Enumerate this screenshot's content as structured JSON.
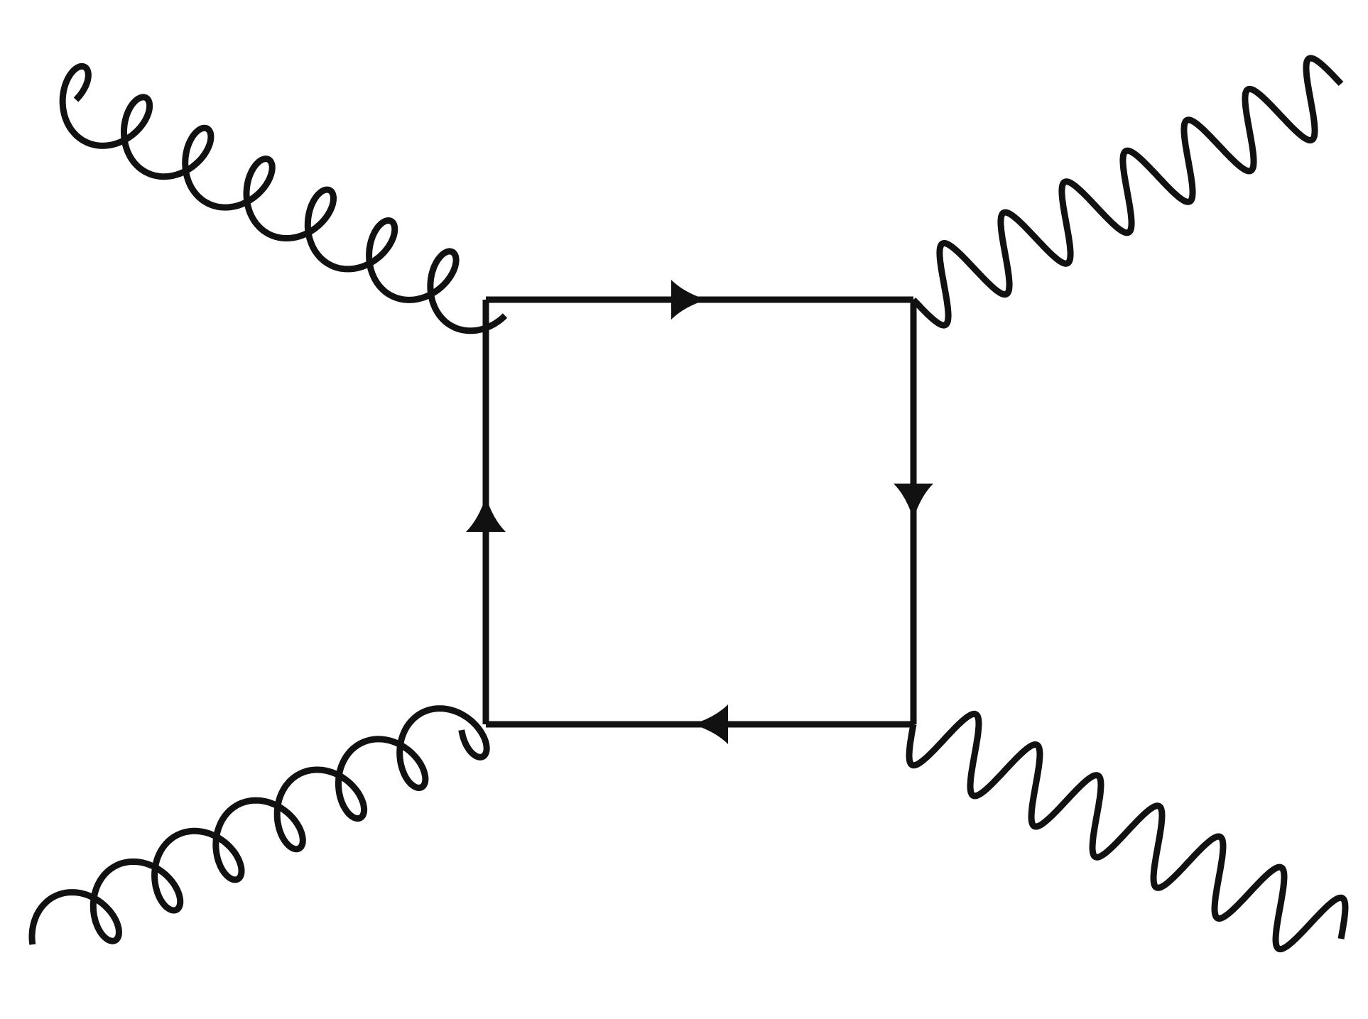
{
  "diagram": {
    "type": "feynman-box",
    "colors": {
      "line": "#111111",
      "background": "#ffffff"
    },
    "vertices": [
      {
        "id": "top-left"
      },
      {
        "id": "top-right"
      },
      {
        "id": "bottom-right"
      },
      {
        "id": "bottom-left"
      }
    ],
    "internal_lines": [
      {
        "kind": "fermion",
        "from": "top-left",
        "to": "top-right",
        "arrow": "right"
      },
      {
        "kind": "fermion",
        "from": "top-right",
        "to": "bottom-right",
        "arrow": "down"
      },
      {
        "kind": "fermion",
        "from": "bottom-right",
        "to": "bottom-left",
        "arrow": "left"
      },
      {
        "kind": "fermion",
        "from": "bottom-left",
        "to": "top-left",
        "arrow": "up"
      }
    ],
    "external_lines": [
      {
        "kind": "gluon",
        "attached_to": "top-left",
        "loops": 7,
        "icon": "gluon-curly-line"
      },
      {
        "kind": "gluon",
        "attached_to": "bottom-left",
        "loops": 7,
        "icon": "gluon-curly-line"
      },
      {
        "kind": "photon",
        "attached_to": "top-right",
        "oscillations": 7,
        "icon": "photon-wavy-line"
      },
      {
        "kind": "photon",
        "attached_to": "bottom-right",
        "oscillations": 7,
        "icon": "photon-wavy-line"
      }
    ]
  }
}
